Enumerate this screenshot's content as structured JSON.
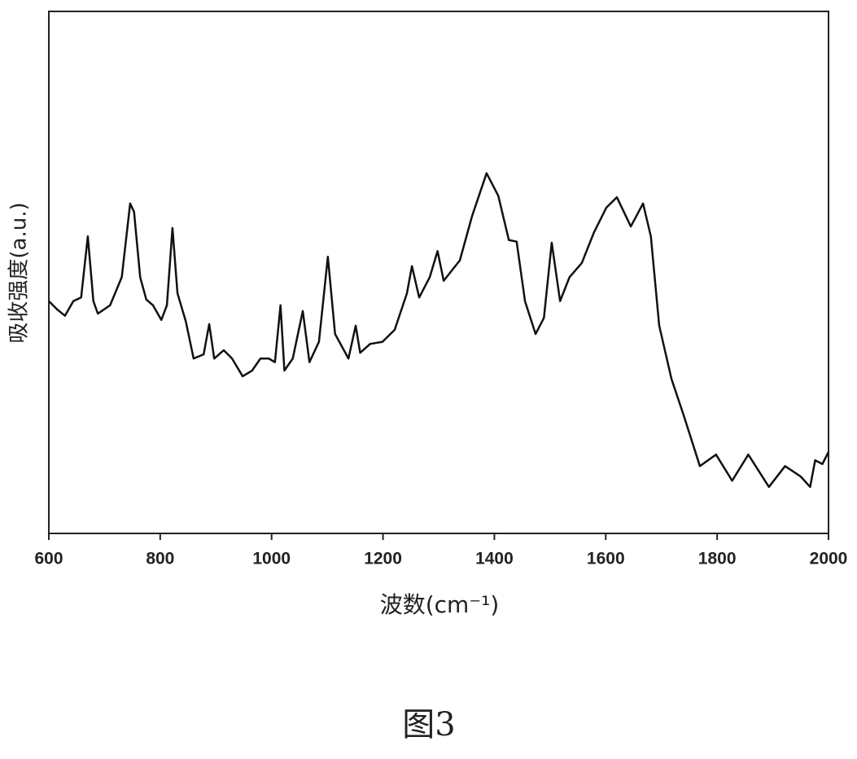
{
  "chart_data": {
    "type": "line",
    "x_label": "波数(cm⁻¹)",
    "y_label": "吸收强度(a.u.)",
    "caption": "图3",
    "color": "#111111",
    "xlim": [
      600,
      2000
    ],
    "xticks": [
      600,
      800,
      1000,
      1200,
      1400,
      1600,
      1800,
      2000
    ],
    "ylim": [
      0,
      100
    ],
    "x": [
      600,
      615,
      629,
      644,
      658,
      670,
      680,
      688,
      710,
      731,
      746,
      753,
      764,
      775,
      787,
      802,
      812,
      822,
      831,
      846,
      860,
      878,
      888,
      897,
      914,
      929,
      948,
      965,
      980,
      995,
      1006,
      1016,
      1023,
      1038,
      1056,
      1068,
      1085,
      1101,
      1114,
      1138,
      1151,
      1159,
      1177,
      1199,
      1221,
      1243,
      1252,
      1265,
      1284,
      1298,
      1309,
      1338,
      1360,
      1386,
      1407,
      1426,
      1440,
      1455,
      1474,
      1489,
      1503,
      1518,
      1535,
      1557,
      1579,
      1601,
      1620,
      1645,
      1667,
      1681,
      1696,
      1718,
      1740,
      1769,
      1798,
      1827,
      1856,
      1893,
      1922,
      1950,
      1967,
      1976,
      1989,
      2000
    ],
    "values": [
      44.5,
      42.9,
      41.7,
      44.5,
      45.2,
      56.9,
      44.5,
      42.1,
      43.7,
      49.1,
      63.2,
      61.6,
      49.1,
      44.8,
      43.7,
      40.9,
      43.7,
      58.5,
      46.0,
      40.6,
      33.5,
      34.3,
      40.1,
      33.5,
      35.1,
      33.5,
      30.1,
      31.2,
      33.5,
      33.5,
      32.8,
      43.7,
      31.2,
      33.5,
      42.6,
      32.8,
      36.7,
      53.0,
      38.2,
      33.5,
      39.8,
      34.6,
      36.3,
      36.7,
      39.0,
      46.0,
      51.2,
      45.2,
      49.1,
      54.1,
      48.4,
      52.3,
      60.8,
      69.0,
      64.7,
      56.2,
      55.9,
      44.5,
      38.2,
      41.3,
      55.7,
      44.5,
      49.1,
      51.8,
      57.7,
      62.4,
      64.4,
      58.8,
      63.2,
      56.9,
      39.8,
      29.6,
      22.6,
      12.9,
      15.1,
      10.1,
      15.1,
      8.9,
      12.9,
      10.9,
      8.9,
      14.0,
      13.3,
      15.6
    ]
  }
}
